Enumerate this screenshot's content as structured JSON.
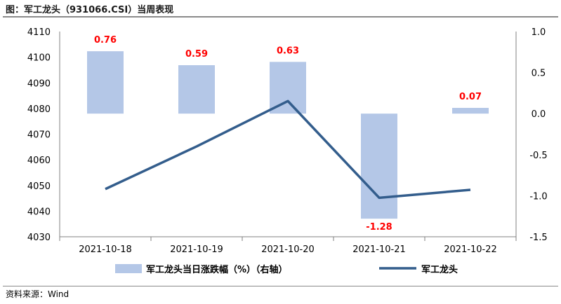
{
  "header": {
    "title": "图：军工龙头（931066.CSI）当周表现"
  },
  "footer": {
    "source": "资料来源：Wind"
  },
  "colors": {
    "bar": "#b4c7e7",
    "line": "#335d8c",
    "label": "#ff0000",
    "axis": "#000000"
  },
  "chart_data": {
    "type": "bar+line",
    "categories": [
      "2021-10-18",
      "2021-10-19",
      "2021-10-20",
      "2021-10-21",
      "2021-10-22"
    ],
    "series": [
      {
        "name": "军工龙头当日涨跌幅（%）（右轴）",
        "type": "bar",
        "axis": "right",
        "values": [
          0.76,
          0.59,
          0.63,
          -1.28,
          0.07
        ],
        "labels": [
          "0.76",
          "0.59",
          "0.63",
          "-1.28",
          "0.07"
        ]
      },
      {
        "name": "军工龙头",
        "type": "line",
        "axis": "left",
        "values": [
          4048.6,
          4065.2,
          4082.9,
          4045.2,
          4048.3
        ]
      }
    ],
    "left_axis": {
      "ylim": [
        4030,
        4110
      ],
      "ticks": [
        "4030",
        "4040",
        "4050",
        "4060",
        "4070",
        "4080",
        "4090",
        "4100",
        "4110"
      ]
    },
    "right_axis": {
      "ylim": [
        -1.5,
        1.0
      ],
      "ticks": [
        "-1.5",
        "-1.0",
        "-0.5",
        "0.0",
        "0.5",
        "1.0"
      ]
    },
    "legend": {
      "position": "bottom",
      "items": [
        "军工龙头当日涨跌幅（%）（右轴）",
        "军工龙头"
      ]
    },
    "grid": false
  }
}
